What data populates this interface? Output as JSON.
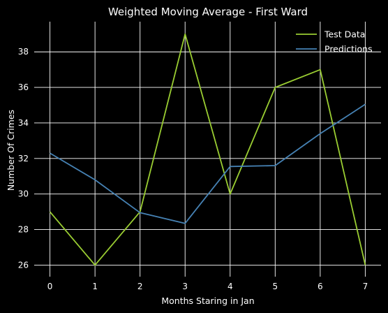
{
  "chart_data": {
    "type": "line",
    "title": "Weighted Moving Average - First Ward",
    "xlabel": "Months Staring in Jan",
    "ylabel": "Number Of Crimes",
    "x": [
      0,
      1,
      2,
      3,
      4,
      5,
      6,
      7
    ],
    "xlim": [
      -0.35,
      7.35
    ],
    "ylim": [
      25.35,
      39.7
    ],
    "xticks": [
      0,
      1,
      2,
      3,
      4,
      5,
      6,
      7
    ],
    "yticks": [
      26,
      28,
      30,
      32,
      34,
      36,
      38
    ],
    "grid": true,
    "legend_position": "top-right",
    "background": "#000000",
    "series": [
      {
        "name": "Test Data",
        "color": "#9acd32",
        "values": [
          29,
          26,
          29,
          39,
          30,
          36,
          37,
          26
        ]
      },
      {
        "name": "Predictions",
        "color": "#4682b4",
        "values": [
          32.3,
          30.8,
          28.95,
          28.35,
          31.55,
          31.6,
          33.4,
          35.05
        ]
      }
    ]
  }
}
